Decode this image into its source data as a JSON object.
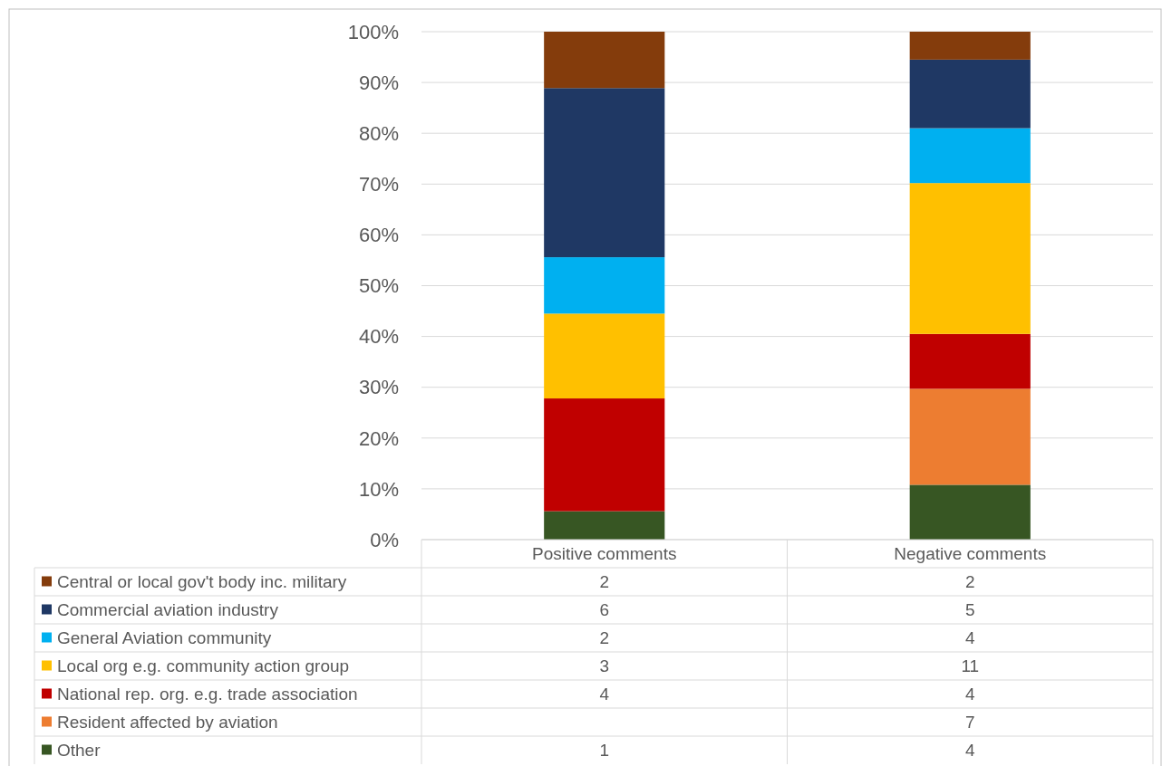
{
  "chart_data": {
    "type": "bar",
    "stacked": true,
    "categories": [
      "Positive comments",
      "Negative comments"
    ],
    "ylim": [
      0,
      100
    ],
    "yticks": [
      {
        "value": 0,
        "label": "0%"
      },
      {
        "value": 10,
        "label": "10%"
      },
      {
        "value": 20,
        "label": "20%"
      },
      {
        "value": 30,
        "label": "30%"
      },
      {
        "value": 40,
        "label": "40%"
      },
      {
        "value": 50,
        "label": "50%"
      },
      {
        "value": 60,
        "label": "60%"
      },
      {
        "value": 70,
        "label": "70%"
      },
      {
        "value": 80,
        "label": "80%"
      },
      {
        "value": 90,
        "label": "90%"
      },
      {
        "value": 100,
        "label": "100%"
      }
    ],
    "grid": "y",
    "legend": "bottom",
    "annotations": [
      "1",
      "4",
      "7",
      "4",
      "4",
      "3",
      "11",
      "2",
      "4",
      "6",
      "5",
      "2",
      "2"
    ],
    "series": [
      {
        "name": "Other",
        "color": "#375623",
        "values": [
          5.6,
          10.8
        ]
      },
      {
        "name": "Resident affected by aviation",
        "color": "#ed7d31",
        "values": [
          null,
          18.9
        ]
      },
      {
        "name": "National rep. org. e.g. trade association",
        "color": "#c00000",
        "values": [
          22.2,
          10.8
        ]
      },
      {
        "name": "Local org e.g. community action group",
        "color": "#ffc000",
        "values": [
          16.7,
          29.7
        ]
      },
      {
        "name": "General Aviation community",
        "color": "#00b0f0",
        "values": [
          11.1,
          10.8
        ]
      },
      {
        "name": "Commercial aviation industry",
        "color": "#1f3864",
        "values": [
          33.3,
          13.5
        ]
      },
      {
        "name": "Central or local gov't body inc. military",
        "color": "#843c0c",
        "values": [
          11.1,
          5.5
        ]
      }
    ]
  }
}
